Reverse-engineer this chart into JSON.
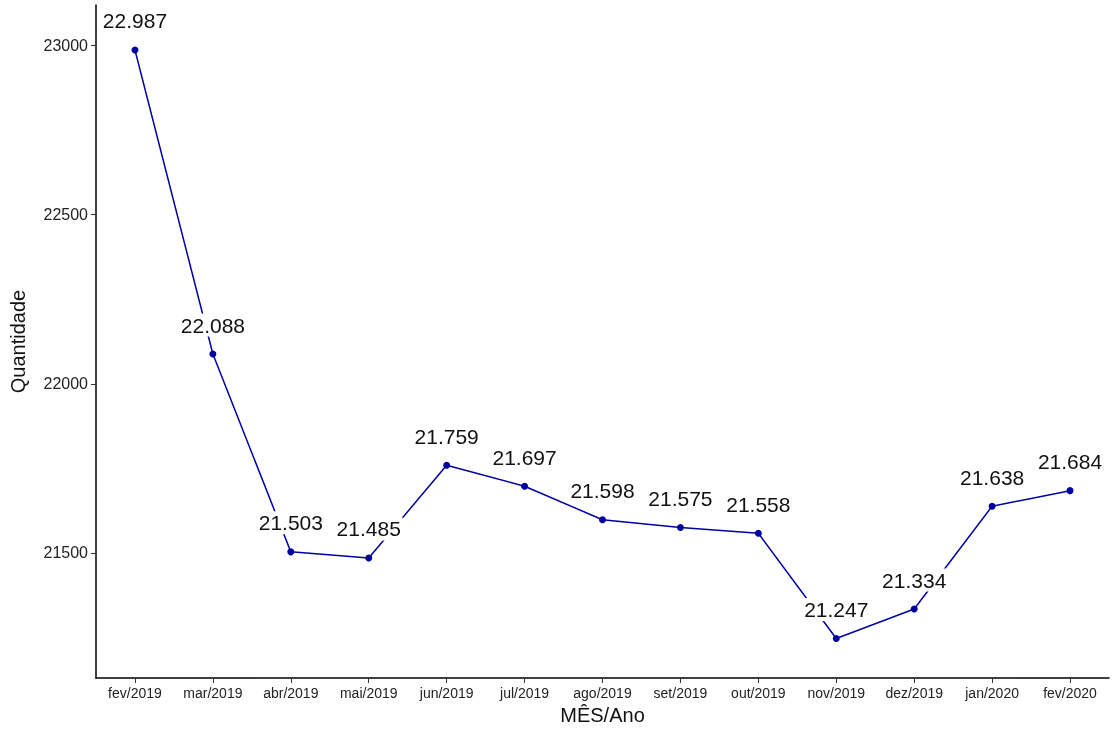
{
  "chart_data": {
    "type": "line",
    "xlabel": "MÊS/Ano",
    "ylabel": "Quantidade",
    "categories": [
      "fev/2019",
      "mar/2019",
      "abr/2019",
      "mai/2019",
      "jun/2019",
      "jul/2019",
      "ago/2019",
      "set/2019",
      "out/2019",
      "nov/2019",
      "dez/2019",
      "jan/2020",
      "fev/2020"
    ],
    "series": [
      {
        "color": "#0000a0",
        "values": [
          22987,
          22088,
          21503,
          21485,
          21759,
          21697,
          21598,
          21575,
          21558,
          21247,
          21334,
          21638,
          21684
        ],
        "value_labels": [
          "22.987",
          "22.088",
          "21.503",
          "21.485",
          "21.759",
          "21.697",
          "21.598",
          "21.575",
          "21.558",
          "21.247",
          "21.334",
          "21.638",
          "21.684"
        ]
      }
    ],
    "ylim": [
      21130,
      23120
    ],
    "yticks": [
      21500,
      22000,
      22500,
      23000
    ],
    "grid": false,
    "marker": "circle",
    "line_style": "solid"
  }
}
